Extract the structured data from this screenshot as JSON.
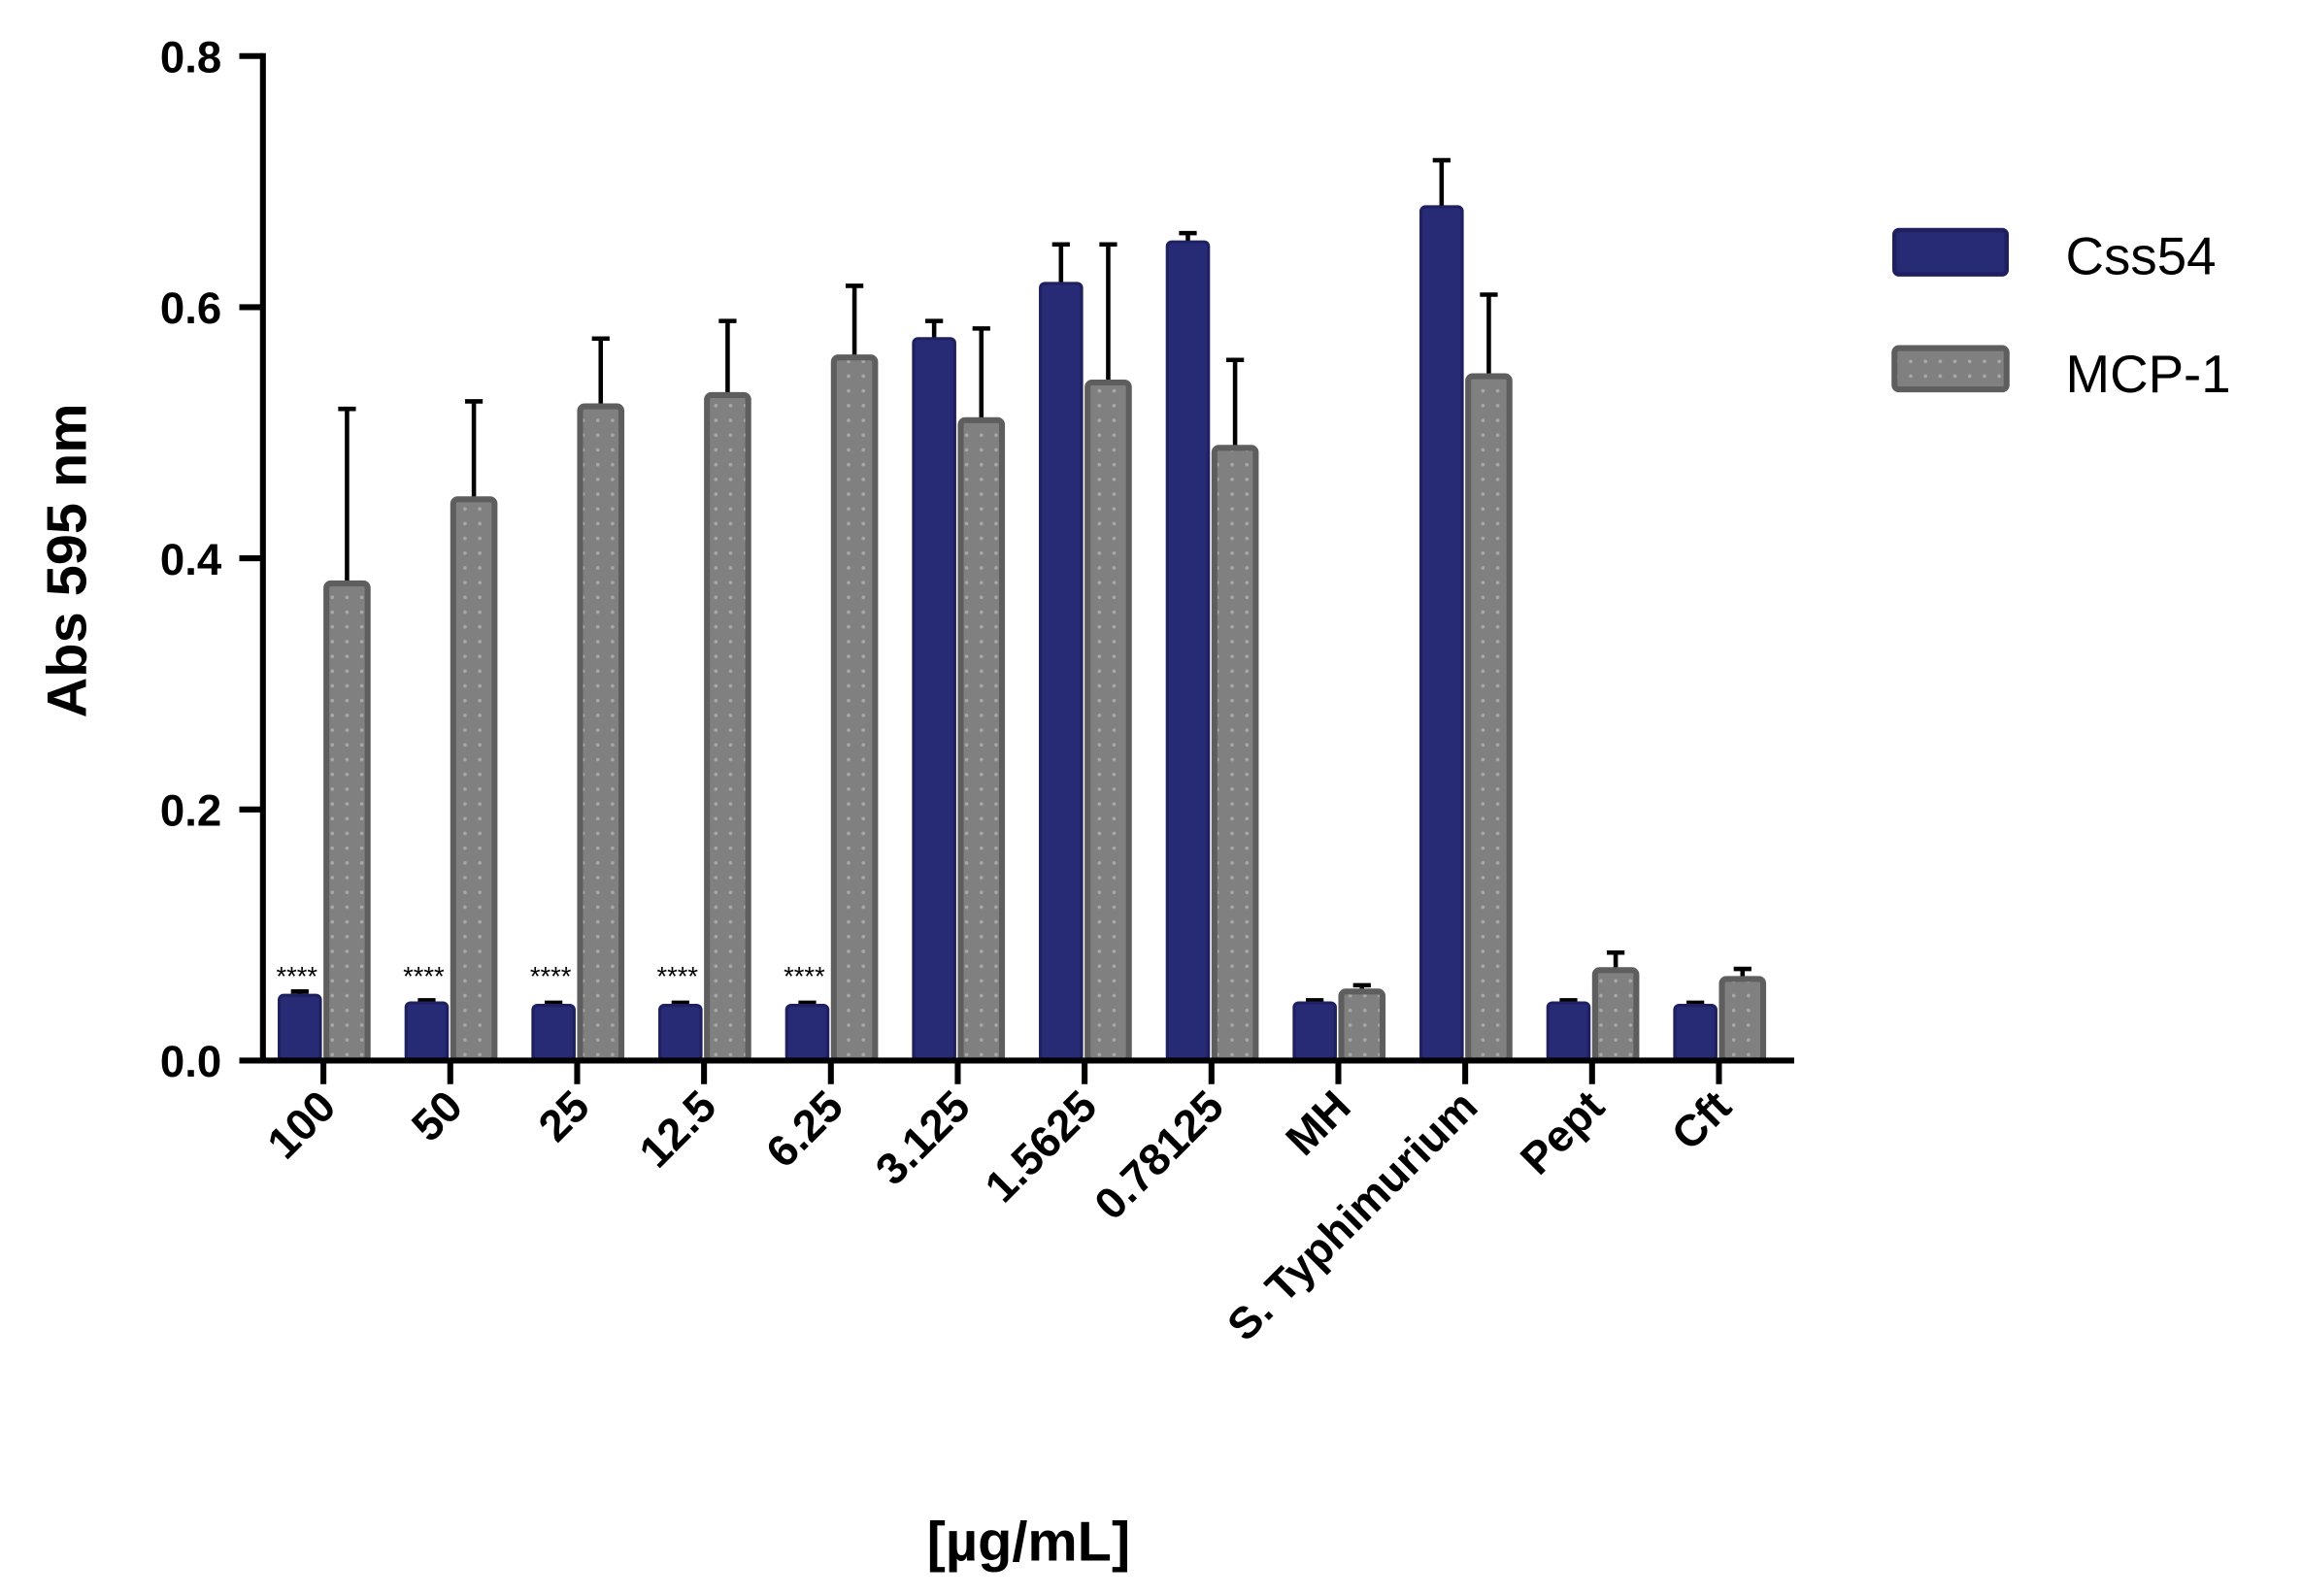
{
  "chart_data": {
    "type": "bar",
    "title": "",
    "xlabel": "[µg/mL]",
    "ylabel": "Abs 595 nm",
    "ylim": [
      0,
      0.8
    ],
    "yticks": [
      "0.0",
      "0.2",
      "0.4",
      "0.6",
      "0.8"
    ],
    "ytick_values": [
      0,
      0.2,
      0.4,
      0.6,
      0.8
    ],
    "grid": false,
    "legend_position": "right",
    "categories": [
      "100",
      "50",
      "25",
      "12.5",
      "6.25",
      "3.125",
      "1.5625",
      "0.78125",
      "MH",
      "S. Typhimurium",
      "Pept",
      "Cft"
    ],
    "series": [
      {
        "name": "Css54",
        "color": "#272a74",
        "values": [
          0.052,
          0.046,
          0.044,
          0.044,
          0.044,
          0.575,
          0.619,
          0.652,
          0.046,
          0.68,
          0.046,
          0.044
        ],
        "errors": [
          0.003,
          0.002,
          0.002,
          0.002,
          0.002,
          0.014,
          0.031,
          0.007,
          0.002,
          0.037,
          0.002,
          0.002
        ]
      },
      {
        "name": "MCP-1",
        "color": "#808080",
        "values": [
          0.38,
          0.447,
          0.521,
          0.53,
          0.56,
          0.51,
          0.54,
          0.488,
          0.055,
          0.545,
          0.072,
          0.065
        ],
        "errors": [
          0.139,
          0.078,
          0.054,
          0.059,
          0.057,
          0.073,
          0.11,
          0.07,
          0.005,
          0.065,
          0.014,
          0.008
        ]
      }
    ],
    "annotations": [
      {
        "category": "100",
        "text": "****"
      },
      {
        "category": "50",
        "text": "****"
      },
      {
        "category": "25",
        "text": "****"
      },
      {
        "category": "12.5",
        "text": "****"
      },
      {
        "category": "6.25",
        "text": "****"
      }
    ]
  }
}
